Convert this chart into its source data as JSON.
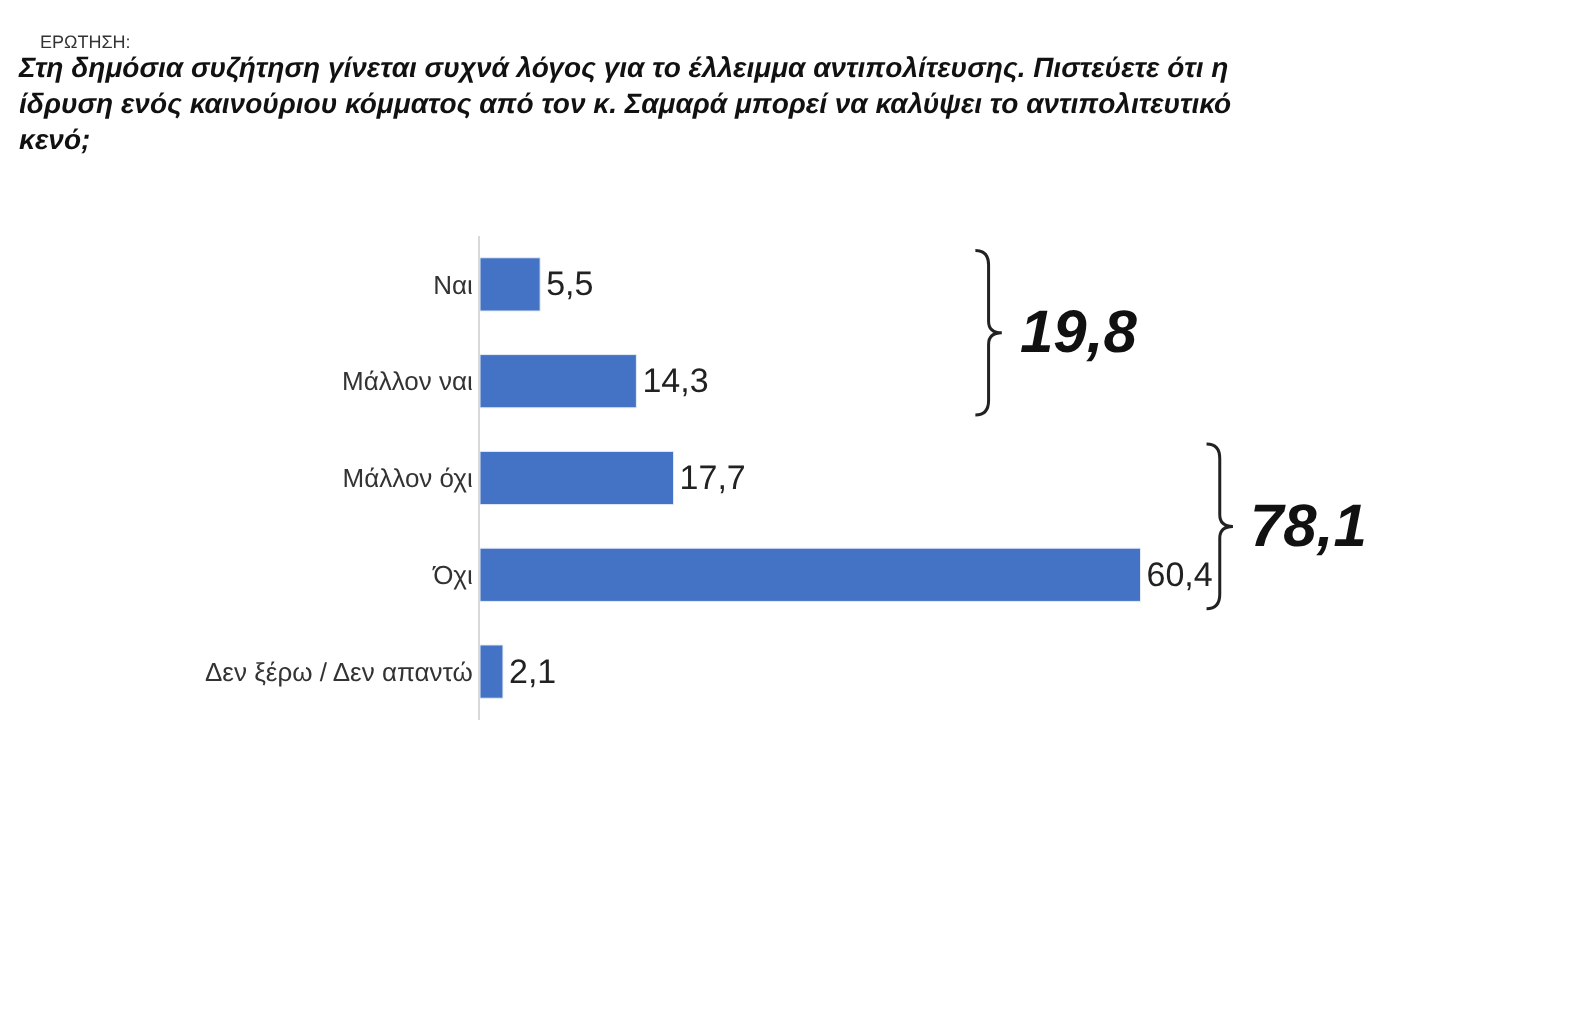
{
  "chart_data": {
    "type": "bar",
    "orientation": "horizontal",
    "title": "Στη δημόσια συζήτηση γίνεται συχνά λόγος για το έλλειμμα αντιπολίτευσης. Πιστεύετε ότι η ίδρυση ενός καινούριου κόμματος από τον κ. Σαμαρά μπορεί να καλύψει το αντιπολιτευτικό κενό;",
    "subtitle": "ΕΡΩΤΗΣΗ:",
    "categories": [
      "Ναι",
      "Μάλλον ναι",
      "Μάλλον όχι",
      "Όχι",
      "Δεν ξέρω / Δεν απαντώ"
    ],
    "values": [
      5.5,
      14.3,
      17.7,
      60.4,
      2.1
    ],
    "value_labels": [
      "5,5",
      "14,3",
      "17,7",
      "60,4",
      "2,1"
    ],
    "color": "#4472c4",
    "annotations": [
      "19,8",
      "78,1"
    ],
    "grid": false,
    "legend": false
  }
}
